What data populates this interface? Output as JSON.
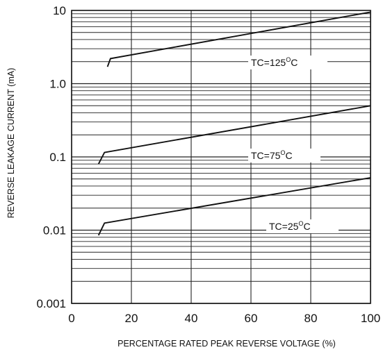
{
  "chart_data": {
    "type": "line",
    "title": "",
    "xlabel": "PERCENTAGE RATED PEAK REVERSE VOLTAGE (%)",
    "ylabel": "REVERSE  LEAKAGE  CURRENT  (mA)",
    "xlim": [
      0,
      100
    ],
    "ylim": [
      0.001,
      10
    ],
    "yscale": "log",
    "grid": true,
    "x_ticks": [
      0,
      20,
      40,
      60,
      80,
      100
    ],
    "x_tick_labels": [
      "0",
      "20",
      "40",
      "60",
      "80",
      "100"
    ],
    "y_ticks": [
      0.001,
      0.01,
      0.1,
      1,
      10
    ],
    "y_tick_labels": [
      "0.001",
      "0.01",
      "0.1",
      "1.0",
      "10"
    ],
    "series": [
      {
        "label_prefix": "TC=125",
        "label_sup": "O",
        "label_suffix": "C",
        "x": [
          12,
          13,
          100
        ],
        "y": [
          1.7,
          2.2,
          9.5
        ]
      },
      {
        "label_prefix": "TC=75",
        "label_sup": "O",
        "label_suffix": "C",
        "x": [
          9,
          11,
          100
        ],
        "y": [
          0.08,
          0.115,
          0.5
        ]
      },
      {
        "label_prefix": "TC=25",
        "label_sup": "O",
        "label_suffix": "C",
        "x": [
          9,
          11,
          100
        ],
        "y": [
          0.0085,
          0.0125,
          0.052
        ]
      }
    ],
    "colors": {
      "line": "#111111",
      "grid": "#222222"
    }
  }
}
